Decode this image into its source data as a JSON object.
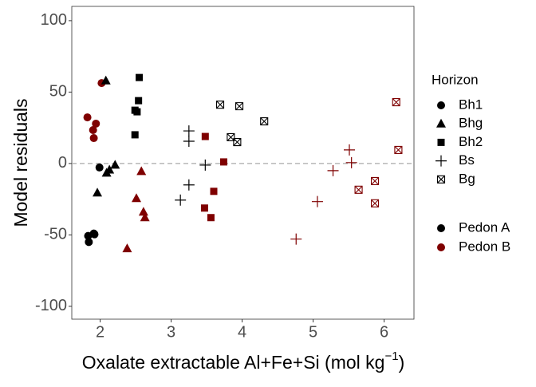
{
  "chart_data": {
    "type": "scatter",
    "xlabel": {
      "text": "Oxalate extractable Al+Fe+Si (mol kg",
      "superscript": "−1",
      "suffix": ")"
    },
    "ylabel": "Model residuals",
    "xlim": [
      1.6,
      6.42
    ],
    "ylim": [
      -109,
      110
    ],
    "xticks": [
      2,
      3,
      4,
      5,
      6
    ],
    "yticks": [
      -100,
      -50,
      0,
      50,
      100
    ],
    "reference_line": 0,
    "legend_position": "right",
    "shape_legend": {
      "title": "Horizon",
      "items": [
        {
          "label": "Bh1",
          "shape": "circle"
        },
        {
          "label": "Bhg",
          "shape": "triangle"
        },
        {
          "label": "Bh2",
          "shape": "square"
        },
        {
          "label": "Bs",
          "shape": "plus"
        },
        {
          "label": "Bg",
          "shape": "boxx"
        }
      ]
    },
    "color_legend": {
      "items": [
        {
          "label": "Pedon A",
          "color": "#000000"
        },
        {
          "label": "Pedon B",
          "color": "#7f0000"
        }
      ]
    },
    "series": [
      {
        "horizon": "Bh1",
        "pedon": "Pedon A",
        "x": [
          1.99,
          1.83,
          1.84,
          1.91,
          1.92
        ],
        "y": [
          -2.8,
          -50.7,
          -55,
          -49,
          -49.6
        ]
      },
      {
        "horizon": "Bh1",
        "pedon": "Pedon B",
        "x": [
          1.82,
          1.9,
          1.94,
          1.91,
          2.02
        ],
        "y": [
          32.3,
          23.4,
          27.9,
          17.8,
          56.3
        ]
      },
      {
        "horizon": "Bhg",
        "pedon": "Pedon A",
        "x": [
          2.08,
          1.96,
          2.09,
          2.13,
          2.21
        ],
        "y": [
          57.9,
          -20.6,
          -6.7,
          -4.5,
          -1.1
        ]
      },
      {
        "horizon": "Bhg",
        "pedon": "Pedon B",
        "x": [
          2.58,
          2.51,
          2.61,
          2.63,
          2.38
        ],
        "y": [
          -5.6,
          -24.5,
          -34,
          -37.9,
          -59.6
        ]
      },
      {
        "horizon": "Bh2",
        "pedon": "Pedon A",
        "x": [
          2.55,
          2.54,
          2.49,
          2.52,
          2.49
        ],
        "y": [
          60.2,
          44,
          37.3,
          36.2,
          20.1
        ]
      },
      {
        "horizon": "Bh2",
        "pedon": "Pedon B",
        "x": [
          3.48,
          3.74,
          3.6,
          3.47,
          3.56
        ],
        "y": [
          18.9,
          1.1,
          -19.5,
          -31.2,
          -37.9
        ]
      },
      {
        "horizon": "Bs",
        "pedon": "Pedon A",
        "x": [
          3.25,
          3.25,
          3.48,
          3.25,
          3.13
        ],
        "y": [
          22.8,
          15.6,
          -1.1,
          -15,
          -25.6
        ]
      },
      {
        "horizon": "Bs",
        "pedon": "Pedon B",
        "x": [
          5.51,
          5.54,
          5.28,
          5.06,
          4.76
        ],
        "y": [
          9.5,
          0.6,
          -5,
          -26.7,
          -52.9
        ]
      },
      {
        "horizon": "Bg",
        "pedon": "Pedon A",
        "x": [
          3.69,
          3.96,
          3.84,
          3.93,
          4.31
        ],
        "y": [
          41.2,
          40.1,
          18.4,
          15,
          29.5
        ]
      },
      {
        "horizon": "Bg",
        "pedon": "Pedon B",
        "x": [
          6.17,
          6.2,
          5.87,
          5.64,
          5.87
        ],
        "y": [
          42.9,
          9.5,
          -12.3,
          -18.4,
          -27.9
        ]
      }
    ]
  }
}
